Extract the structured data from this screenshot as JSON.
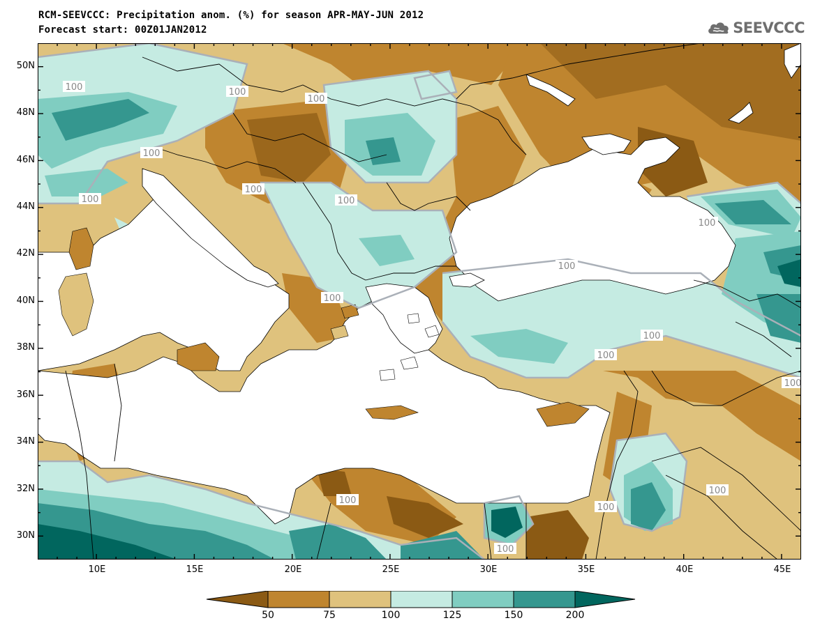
{
  "header": {
    "title": "RCM-SEEVCCC: Precipitation anom. (%) for season APR-MAY-JUN 2012",
    "subtitle": "Forecast start: 00Z01JAN2012"
  },
  "logo": {
    "text": "SEEVCCC",
    "icon": "cloud-logo-icon",
    "color": "#6e6e6e"
  },
  "map": {
    "variable": "precipitation anomaly",
    "units": "%",
    "lon_range": [
      7,
      46
    ],
    "lat_range": [
      29,
      51
    ],
    "lon_ticks": [
      "10E",
      "15E",
      "20E",
      "25E",
      "30E",
      "35E",
      "40E",
      "45E"
    ],
    "lat_ticks": [
      "50N",
      "48N",
      "46N",
      "44N",
      "42N",
      "40N",
      "38N",
      "36N",
      "34N",
      "32N",
      "30N"
    ],
    "contour_labels": [
      "100",
      "100",
      "100",
      "100",
      "100",
      "100",
      "100",
      "100",
      "100",
      "100",
      "100",
      "100",
      "100",
      "100",
      "100",
      "100",
      "100"
    ]
  },
  "legend": {
    "levels": [
      "50",
      "75",
      "100",
      "125",
      "150",
      "200"
    ],
    "colors": [
      "#8b5a14",
      "#bf852f",
      "#dfc27d",
      "#c5ebe2",
      "#80cdc1",
      "#35978f",
      "#01665e"
    ]
  },
  "palette": {
    "sea": "#ffffff",
    "contour_line": "#aab0b8",
    "border_line": "#000000"
  }
}
